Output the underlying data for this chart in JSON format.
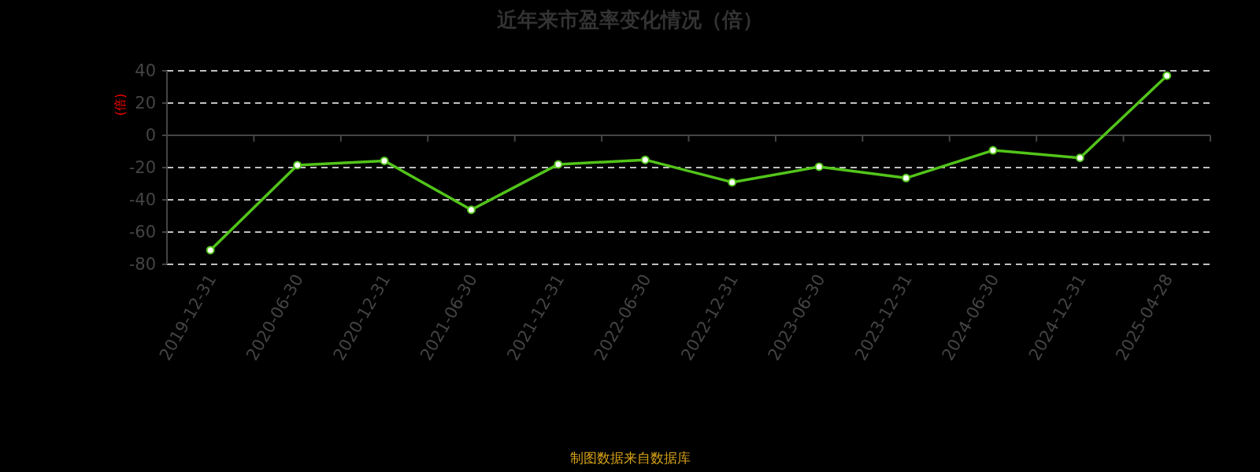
{
  "chart_data": {
    "type": "line",
    "title": "近年来市盈率变化情况（倍）",
    "ylabel": "(倍)",
    "categories": [
      "2019-12-31",
      "2020-06-30",
      "2020-12-31",
      "2021-06-30",
      "2021-12-31",
      "2022-06-30",
      "2022-12-31",
      "2023-06-30",
      "2023-12-31",
      "2024-06-30",
      "2024-12-31",
      "2025-04-28"
    ],
    "series": [
      {
        "color": "#52c41a",
        "values": [
          -71.2,
          -18.5,
          -15.8,
          -46.2,
          -18,
          -15.2,
          -29.1,
          -19.5,
          -26.5,
          -9.3,
          -14,
          37
        ]
      }
    ],
    "ylim": [
      -80,
      40
    ],
    "yticks": [
      -80,
      -60,
      -40,
      -20,
      0,
      20,
      40
    ],
    "grid": "y",
    "marker": "circle",
    "line_style": "solid",
    "annotations": [
      "制图数据来自数据库"
    ]
  }
}
